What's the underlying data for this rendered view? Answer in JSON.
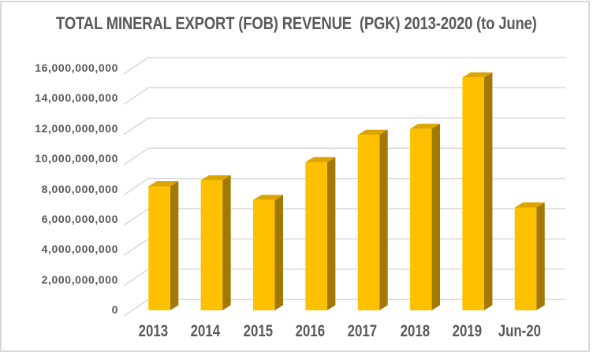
{
  "page": {
    "background": "#FFFFFF",
    "border_color": "#D9D9D9"
  },
  "chart_data": {
    "type": "bar",
    "subtype": "3d-clustered-column",
    "title": "TOTAL MINERAL EXPORT (FOB) REVENUE  (PGK) 2013-2020 (to June)",
    "categories": [
      "2013",
      "2014",
      "2015",
      "2016",
      "2017",
      "2018",
      "2019",
      "Jun-20"
    ],
    "values": [
      8200000000,
      8600000000,
      7300000000,
      9800000000,
      11600000000,
      12000000000,
      15400000000,
      6800000000
    ],
    "xlabel": "",
    "ylabel": "",
    "ylim": [
      0,
      16000000000
    ],
    "ytick_step": 2000000000,
    "ytick_labels_top_to_bottom": [
      "16,000,000,000",
      "14,000,000,000",
      "12,000,000,000",
      "10,000,000,000",
      "8,000,000,000",
      "6,000,000,000",
      "4,000,000,000",
      "2,000,000,000",
      "0"
    ],
    "grid": true,
    "legend": "none",
    "colors": {
      "bar_front": "#FFC000",
      "bar_top": "#DCA400",
      "bar_side": "#A27907",
      "gridline": "#D9D9D9",
      "text": "#595959",
      "title_text": "#595959"
    }
  }
}
